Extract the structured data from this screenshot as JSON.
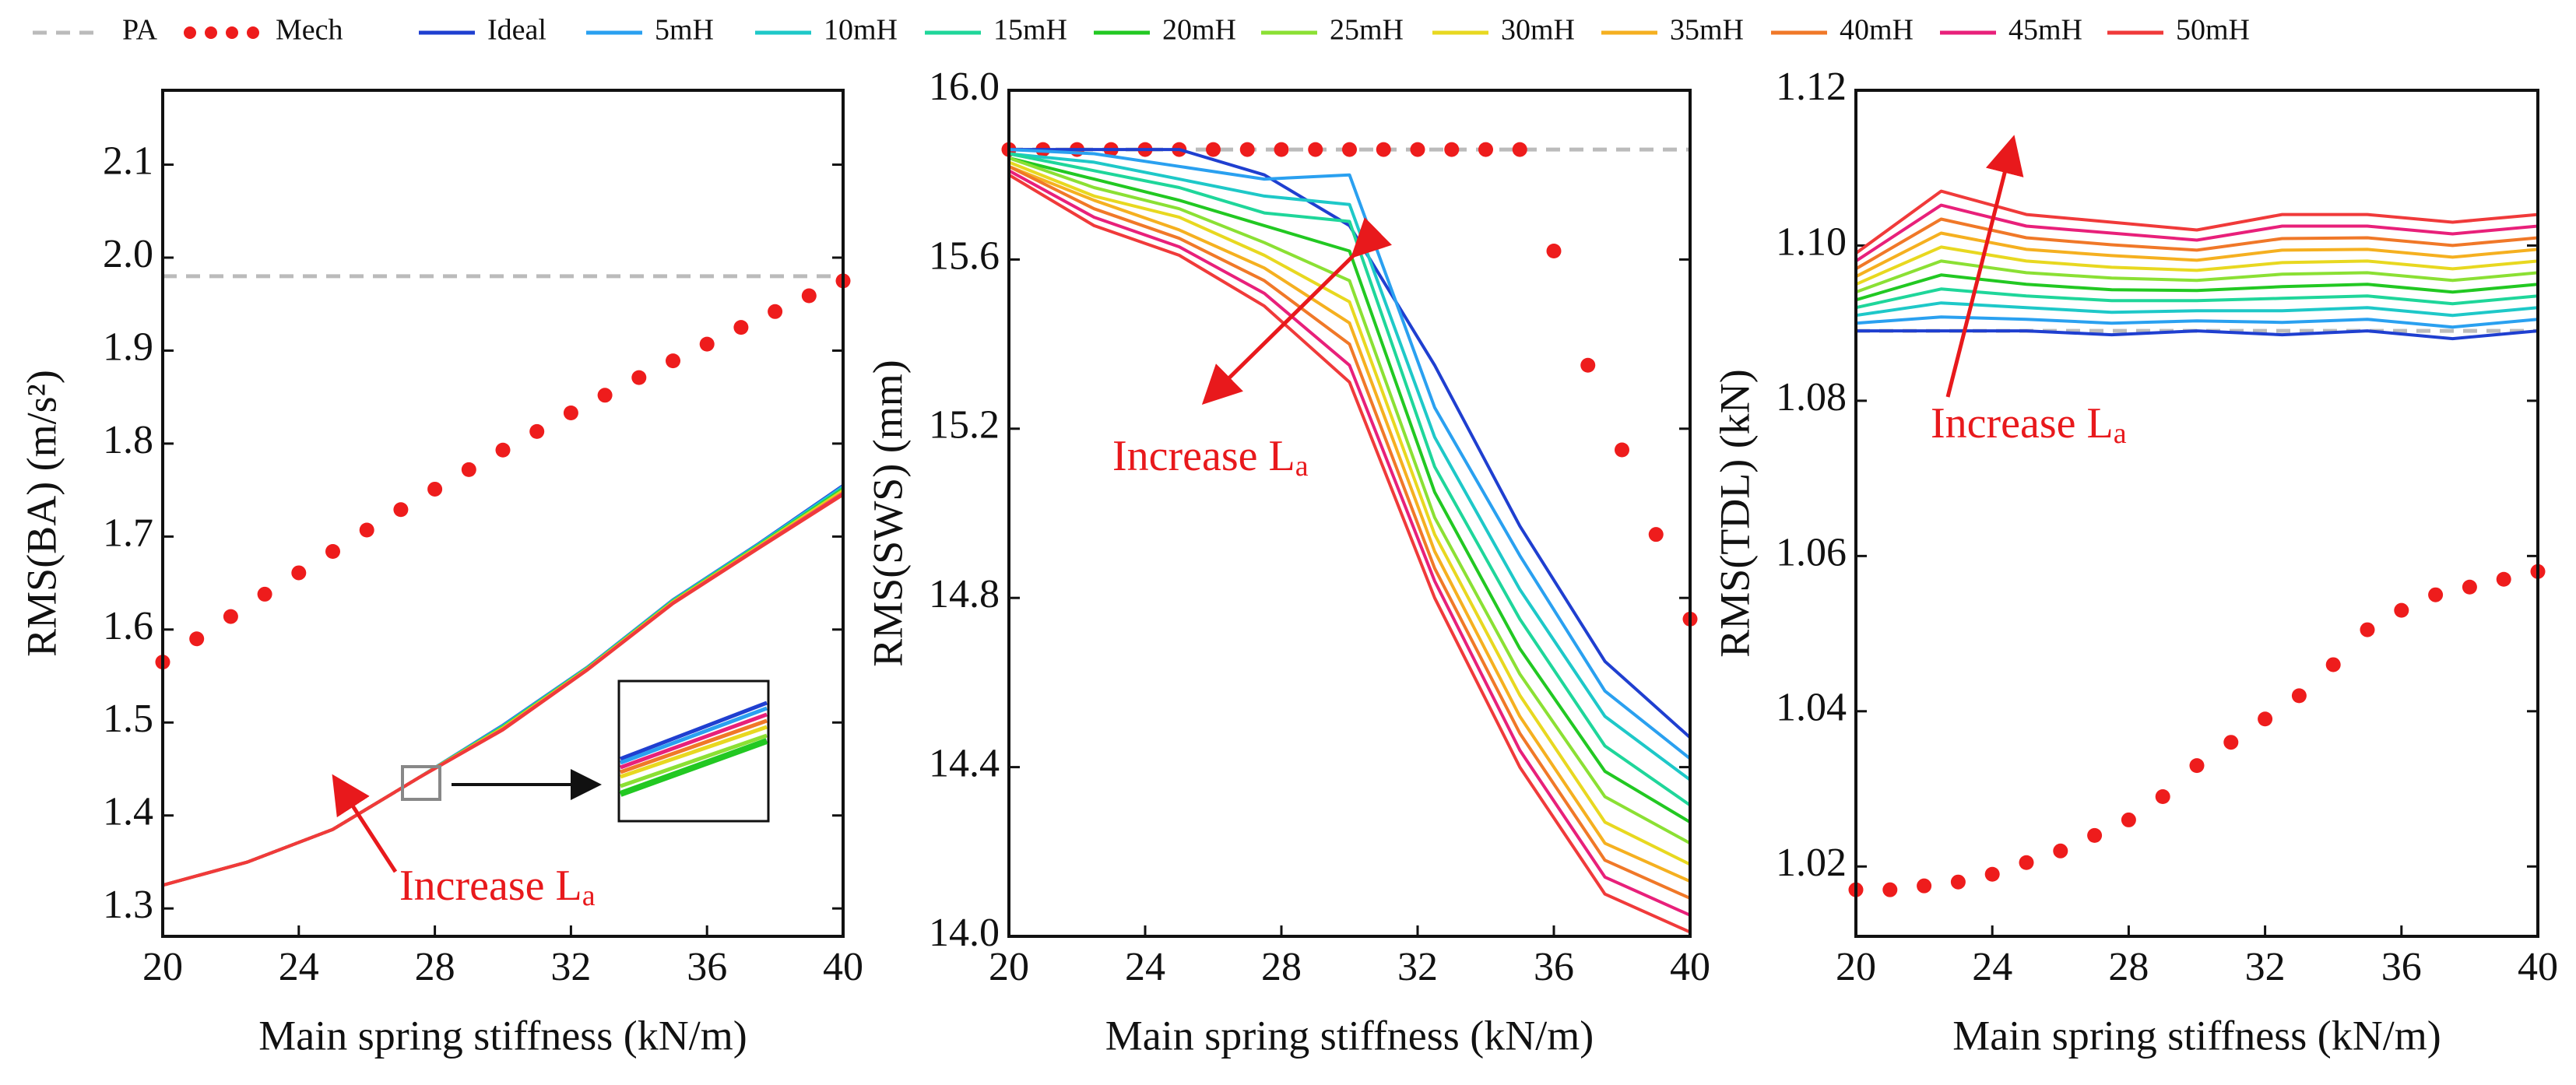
{
  "legend": [
    {
      "name": "PA",
      "color": "#bbbbbb",
      "style": "dashed"
    },
    {
      "name": "Mech",
      "color": "#ee1c1c",
      "style": "dotted"
    },
    {
      "name": "Ideal",
      "color": "#1f3fd0",
      "style": "solid"
    },
    {
      "name": "5mH",
      "color": "#2aa0f0",
      "style": "solid"
    },
    {
      "name": "10mH",
      "color": "#1ec8c8",
      "style": "solid"
    },
    {
      "name": "15mH",
      "color": "#1fd69a",
      "style": "solid"
    },
    {
      "name": "20mH",
      "color": "#22c822",
      "style": "solid"
    },
    {
      "name": "25mH",
      "color": "#8be034",
      "style": "solid"
    },
    {
      "name": "30mH",
      "color": "#e8d820",
      "style": "solid"
    },
    {
      "name": "35mH",
      "color": "#f5b020",
      "style": "solid"
    },
    {
      "name": "40mH",
      "color": "#f07828",
      "style": "solid"
    },
    {
      "name": "45mH",
      "color": "#e8207a",
      "style": "solid"
    },
    {
      "name": "50mH",
      "color": "#f03a3a",
      "style": "solid"
    }
  ],
  "chart_data": [
    {
      "type": "line",
      "x_label": "Main spring stiffness (kN/m)",
      "y_label": "RMS(BA) (m/s²)",
      "xlim": [
        20,
        40
      ],
      "xticks": [
        20,
        24,
        28,
        32,
        36,
        40
      ],
      "ylim": [
        1.27,
        2.18
      ],
      "yticks": [
        1.3,
        1.4,
        1.5,
        1.6,
        1.7,
        1.8,
        1.9,
        {
          "value": 2,
          "label": "2.0"
        },
        2.1
      ],
      "annotation": {
        "text": "Increase L",
        "sub": "a"
      },
      "x": [
        20,
        22.5,
        25,
        27.5,
        30,
        32.5,
        35,
        37.5,
        40
      ],
      "series": [
        {
          "x": [
            20,
            40
          ],
          "values": [
            1.98,
            1.98
          ]
        },
        {
          "x": [
            20,
            21,
            22,
            23,
            24,
            25,
            26,
            27,
            28,
            29,
            30,
            31,
            32,
            33,
            34,
            35,
            36,
            37,
            38,
            39,
            40
          ],
          "values": [
            1.565,
            1.59,
            1.614,
            1.638,
            1.661,
            1.684,
            1.707,
            1.729,
            1.751,
            1.772,
            1.793,
            1.813,
            1.833,
            1.852,
            1.871,
            1.889,
            1.907,
            1.925,
            1.942,
            1.959,
            1.975
          ]
        },
        {
          "values": [
            1.325,
            1.35,
            1.385,
            1.44,
            1.497,
            1.56,
            1.632,
            1.692,
            1.755
          ]
        },
        {
          "values": [
            1.325,
            1.35,
            1.385,
            1.44,
            1.4965,
            1.5597,
            1.6316,
            1.6915,
            1.754
          ]
        },
        {
          "values": [
            1.325,
            1.35,
            1.385,
            1.44,
            1.496,
            1.5594,
            1.6312,
            1.691,
            1.753
          ]
        },
        {
          "values": [
            1.325,
            1.35,
            1.385,
            1.44,
            1.4955,
            1.5591,
            1.6308,
            1.6905,
            1.752
          ]
        },
        {
          "values": [
            1.325,
            1.35,
            1.385,
            1.44,
            1.495,
            1.5588,
            1.6304,
            1.69,
            1.751
          ]
        },
        {
          "values": [
            1.325,
            1.35,
            1.385,
            1.44,
            1.4945,
            1.5585,
            1.63,
            1.6895,
            1.75
          ]
        },
        {
          "values": [
            1.325,
            1.35,
            1.385,
            1.44,
            1.494,
            1.5582,
            1.6296,
            1.689,
            1.749
          ]
        },
        {
          "values": [
            1.325,
            1.35,
            1.385,
            1.44,
            1.4935,
            1.5579,
            1.6292,
            1.6885,
            1.748
          ]
        },
        {
          "values": [
            1.325,
            1.35,
            1.385,
            1.44,
            1.493,
            1.5576,
            1.6288,
            1.688,
            1.747
          ]
        },
        {
          "values": [
            1.325,
            1.35,
            1.385,
            1.44,
            1.4925,
            1.5573,
            1.6284,
            1.6875,
            1.746
          ]
        },
        {
          "values": [
            1.325,
            1.35,
            1.385,
            1.44,
            1.492,
            1.557,
            1.628,
            1.687,
            1.745
          ]
        }
      ]
    },
    {
      "type": "line",
      "x_label": "Main spring stiffness (kN/m)",
      "y_label": "RMS(SWS) (mm)",
      "xlim": [
        20,
        40
      ],
      "xticks": [
        20,
        24,
        28,
        32,
        36,
        40
      ],
      "ylim": [
        14,
        16
      ],
      "yticks": [
        {
          "value": 14,
          "label": "14.0"
        },
        14.4,
        14.8,
        15.2,
        15.6,
        {
          "value": 16,
          "label": "16.0"
        }
      ],
      "annotation": {
        "text": "Increase L",
        "sub": "a"
      },
      "x": [
        20,
        22.5,
        25,
        27.5,
        30,
        32.5,
        35,
        37.5,
        40
      ],
      "series": [
        {
          "x": [
            20,
            40
          ],
          "values": [
            15.86,
            15.86
          ]
        },
        {
          "x": [
            20,
            21,
            22,
            23,
            24,
            25,
            26,
            27,
            28,
            29,
            30,
            31,
            32,
            33,
            34,
            35,
            36,
            37,
            38,
            39,
            40
          ],
          "values": [
            15.86,
            15.86,
            15.86,
            15.86,
            15.86,
            15.86,
            15.86,
            15.86,
            15.86,
            15.86,
            15.86,
            15.86,
            15.86,
            15.86,
            15.86,
            15.86,
            15.62,
            15.35,
            15.15,
            14.95,
            14.75
          ]
        },
        {
          "values": [
            15.86,
            15.86,
            15.86,
            15.8,
            15.68,
            15.35,
            14.97,
            14.65,
            14.47
          ]
        },
        {
          "values": [
            15.86,
            15.85,
            15.82,
            15.79,
            15.8,
            15.25,
            14.9,
            14.58,
            14.42
          ]
        },
        {
          "values": [
            15.85,
            15.83,
            15.79,
            15.75,
            15.73,
            15.18,
            14.82,
            14.52,
            14.37
          ]
        },
        {
          "values": [
            15.85,
            15.81,
            15.77,
            15.71,
            15.69,
            15.11,
            14.75,
            14.45,
            14.31
          ]
        },
        {
          "values": [
            15.84,
            15.79,
            15.74,
            15.68,
            15.62,
            15.05,
            14.68,
            14.39,
            14.27
          ]
        },
        {
          "values": [
            15.84,
            15.77,
            15.72,
            15.64,
            15.55,
            14.99,
            14.62,
            14.33,
            14.22
          ]
        },
        {
          "values": [
            15.83,
            15.75,
            15.7,
            15.61,
            15.5,
            14.95,
            14.57,
            14.27,
            14.17
          ]
        },
        {
          "values": [
            15.82,
            15.74,
            15.67,
            15.58,
            15.45,
            14.91,
            14.52,
            14.22,
            14.13
          ]
        },
        {
          "values": [
            15.82,
            15.72,
            15.65,
            15.55,
            15.4,
            14.87,
            14.48,
            14.18,
            14.09
          ]
        },
        {
          "values": [
            15.81,
            15.7,
            15.63,
            15.52,
            15.35,
            14.84,
            14.44,
            14.14,
            14.05
          ]
        },
        {
          "values": [
            15.8,
            15.68,
            15.61,
            15.49,
            15.31,
            14.8,
            14.4,
            14.1,
            14.01
          ]
        }
      ]
    },
    {
      "type": "line",
      "x_label": "Main spring stiffness (kN/m)",
      "y_label": "RMS(TDL) (kN)",
      "xlim": [
        20,
        40
      ],
      "xticks": [
        20,
        24,
        28,
        32,
        36,
        40
      ],
      "ylim": [
        1.011,
        1.12
      ],
      "yticks": [
        1.02,
        1.04,
        1.06,
        1.08,
        {
          "value": 1.1,
          "label": "1.10"
        },
        1.12
      ],
      "annotation": {
        "text": "Increase L",
        "sub": "a"
      },
      "x": [
        20,
        22.5,
        25,
        27.5,
        30,
        32.5,
        35,
        37.5,
        40
      ],
      "series": [
        {
          "x": [
            20,
            40
          ],
          "values": [
            1.089,
            1.089
          ]
        },
        {
          "x": [
            20,
            21,
            22,
            23,
            24,
            25,
            26,
            27,
            28,
            29,
            30,
            31,
            32,
            33,
            34,
            35,
            36,
            37,
            38,
            39,
            40
          ],
          "values": [
            1.017,
            1.017,
            1.0175,
            1.018,
            1.019,
            1.0205,
            1.022,
            1.024,
            1.026,
            1.029,
            1.033,
            1.036,
            1.039,
            1.042,
            1.046,
            1.0505,
            1.053,
            1.055,
            1.056,
            1.057,
            1.058
          ]
        },
        {
          "values": [
            1.089,
            1.089,
            1.089,
            1.0885,
            1.089,
            1.0885,
            1.089,
            1.088,
            1.089
          ]
        },
        {
          "values": [
            1.09,
            1.0908,
            1.0905,
            1.09,
            1.0903,
            1.0901,
            1.0905,
            1.0895,
            1.0905
          ]
        },
        {
          "values": [
            1.091,
            1.0926,
            1.092,
            1.0914,
            1.0916,
            1.0916,
            1.092,
            1.091,
            1.092
          ]
        },
        {
          "values": [
            1.092,
            1.0944,
            1.0935,
            1.0929,
            1.0929,
            1.0932,
            1.0935,
            1.0925,
            1.0935
          ]
        },
        {
          "values": [
            1.093,
            1.0962,
            1.095,
            1.0943,
            1.0942,
            1.0947,
            1.095,
            1.094,
            1.095
          ]
        },
        {
          "values": [
            1.094,
            1.098,
            1.0965,
            1.0958,
            1.0955,
            1.0963,
            1.0965,
            1.0955,
            1.0965
          ]
        },
        {
          "values": [
            1.095,
            1.0998,
            1.098,
            1.0972,
            1.0968,
            1.0978,
            1.098,
            1.097,
            1.098
          ]
        },
        {
          "values": [
            1.096,
            1.1016,
            1.0995,
            1.0987,
            1.0981,
            1.0994,
            1.0995,
            1.0985,
            1.0995
          ]
        },
        {
          "values": [
            1.097,
            1.1034,
            1.101,
            1.1001,
            1.0994,
            1.1009,
            1.101,
            1.1,
            1.101
          ]
        },
        {
          "values": [
            1.098,
            1.1052,
            1.1025,
            1.1016,
            1.1007,
            1.1025,
            1.1025,
            1.1015,
            1.1025
          ]
        },
        {
          "values": [
            1.099,
            1.107,
            1.104,
            1.103,
            1.102,
            1.104,
            1.104,
            1.103,
            1.104
          ]
        }
      ]
    }
  ]
}
